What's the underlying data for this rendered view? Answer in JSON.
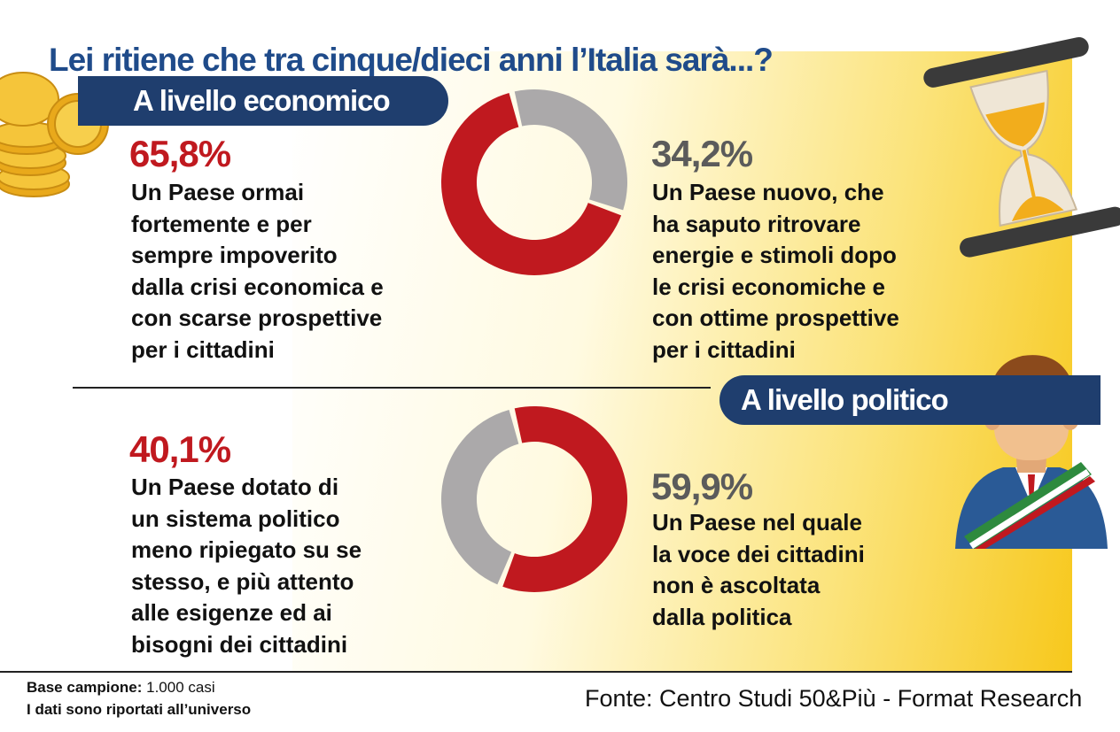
{
  "title": "Lei ritiene che tra cinque/dieci anni l’Italia sarà...?",
  "chart_data": [
    {
      "type": "pie",
      "title": "A livello economico",
      "slices": [
        {
          "label": "Un Paese ormai fortemente e per sempre impoverito dalla crisi economica e con scarse prospettive per i cittadini",
          "value": 65.8,
          "display": "65,8%",
          "color": "#c0191f"
        },
        {
          "label": "Un Paese nuovo, che ha saputo ritrovare energie e stimoli dopo le crisi economiche e con ottime prospettive per i cittadini",
          "value": 34.2,
          "display": "34,2%",
          "color": "#aba9aa"
        }
      ]
    },
    {
      "type": "pie",
      "title": "A livello politico",
      "slices": [
        {
          "label": "Un Paese nel quale la voce dei cittadini non è ascoltata dalla politica",
          "value": 59.9,
          "display": "59,9%",
          "color": "#c0191f"
        },
        {
          "label": "Un Paese dotato di un sistema politico meno ripiegato su se stesso, e più attento alle esigenze ed ai bisogni dei cittadini",
          "value": 40.1,
          "display": "40,1%",
          "color": "#aba9aa"
        }
      ]
    }
  ],
  "eco": {
    "heading": "A livello economico",
    "left_pct": "65,8%",
    "left_lines": [
      "Un Paese ormai",
      "fortemente e per",
      "sempre impoverito",
      "dalla crisi economica e",
      "con scarse prospettive",
      "per i cittadini"
    ],
    "right_pct": "34,2%",
    "right_lines": [
      "Un Paese nuovo, che",
      "ha saputo ritrovare",
      "energie e stimoli dopo",
      "le crisi economiche e",
      "con ottime prospettive",
      "per i cittadini"
    ]
  },
  "pol": {
    "heading": "A livello politico",
    "left_pct": "40,1%",
    "left_lines": [
      "Un Paese dotato di",
      "un sistema politico",
      "meno ripiegato su se",
      "stesso, e più attento",
      "alle esigenze ed ai",
      "bisogni dei cittadini"
    ],
    "right_pct": "59,9%",
    "right_lines": [
      "Un Paese nel quale",
      "la voce dei cittadini",
      "non è ascoltata",
      "dalla politica"
    ]
  },
  "footer": {
    "base_label": "Base campione:",
    "base_value": "1.000 casi",
    "note": "I dati sono riportati all’universo",
    "source": "Fonte: Centro Studi 50&Più - Format Research"
  },
  "icons": [
    "coins-icon",
    "hourglass-icon",
    "mayor-icon"
  ],
  "colors": {
    "navy": "#1f3e6e",
    "title_blue": "#1f4b8a",
    "red": "#c0191f",
    "grey": "#aba9aa",
    "yellow": "#f7c81c"
  }
}
